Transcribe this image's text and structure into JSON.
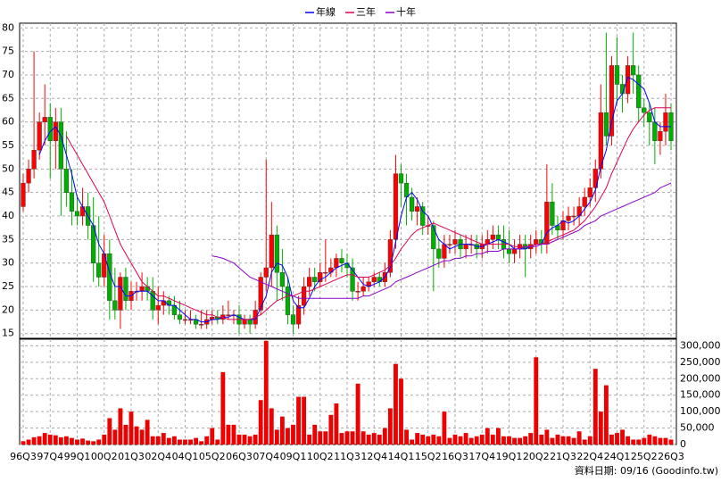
{
  "chart_data": {
    "type": "candlestick",
    "categories": [
      "96Q3",
      null,
      null,
      null,
      null,
      "97Q4",
      null,
      null,
      null,
      null,
      "99Q1",
      null,
      null,
      null,
      null,
      "00Q2",
      null,
      null,
      null,
      null,
      "01Q3",
      null,
      null,
      null,
      null,
      "02Q4",
      null,
      null,
      null,
      null,
      "04Q1",
      null,
      null,
      null,
      null,
      "05Q2",
      null,
      null,
      null,
      null,
      "06Q3",
      null,
      null,
      null,
      null,
      "07Q4",
      null,
      null,
      null,
      null,
      "09Q1",
      null,
      null,
      null,
      null,
      "10Q2",
      null,
      null,
      null,
      null,
      "11Q3",
      null,
      null,
      null,
      null,
      "12Q4",
      null,
      null,
      null,
      null,
      "14Q1",
      null,
      null,
      null,
      null,
      "15Q2",
      null,
      null,
      null,
      null,
      "16Q3",
      null,
      null,
      null,
      null,
      "17Q4",
      null,
      null,
      null,
      null,
      "19Q1",
      null,
      null,
      null,
      null,
      "20Q2",
      null,
      null,
      null,
      null,
      "21Q3",
      null,
      null,
      null,
      null,
      "22Q4",
      null,
      null,
      null,
      null,
      "24Q1",
      null,
      null,
      null,
      null,
      "25Q2",
      null,
      null,
      null,
      null,
      "26Q3"
    ],
    "open": [
      42,
      47,
      50,
      54,
      60,
      61,
      56,
      60,
      50,
      45,
      41,
      40,
      42,
      38,
      30,
      27,
      32,
      22,
      20,
      27,
      22,
      24,
      24,
      25,
      24,
      20,
      21,
      22,
      21,
      19,
      18,
      18,
      18,
      17,
      17,
      18,
      18.5,
      18,
      19,
      19,
      19,
      17,
      18,
      17,
      20,
      27,
      29,
      36,
      28,
      25,
      19,
      17,
      21,
      25,
      27,
      26,
      28,
      28,
      29,
      31,
      30,
      29,
      24,
      24,
      25,
      26,
      27,
      26,
      28,
      35,
      49,
      47,
      44,
      41,
      42,
      38,
      38,
      33,
      31,
      34,
      34,
      35,
      33,
      34,
      34,
      33,
      34,
      35,
      36,
      35,
      33,
      32,
      33,
      34,
      33,
      34,
      35,
      34,
      43,
      38,
      37,
      39,
      40,
      40,
      42,
      44,
      46,
      50,
      62,
      57,
      72,
      68,
      66,
      72,
      70,
      63,
      62,
      60,
      56,
      58,
      62
    ],
    "high": [
      49,
      52,
      75,
      62,
      68,
      64,
      63,
      63,
      58,
      50,
      44,
      46,
      45,
      44,
      40,
      36,
      35,
      29,
      28,
      29,
      26,
      26,
      28,
      27,
      27,
      25,
      24,
      23,
      23,
      22,
      20,
      20,
      19,
      20,
      20,
      20,
      20,
      21,
      22,
      20,
      21,
      19,
      19,
      22,
      28,
      52,
      43,
      38,
      33,
      27,
      21,
      23,
      27,
      29,
      29,
      30,
      35,
      31,
      32,
      33,
      32,
      31,
      26,
      27,
      27,
      28,
      28,
      30,
      37,
      53,
      51,
      49,
      46,
      44,
      43,
      40,
      39,
      35,
      36,
      36,
      37,
      36,
      36,
      36,
      36,
      36,
      37,
      38,
      38,
      38,
      37,
      35,
      36,
      36,
      36,
      37,
      37,
      51,
      47,
      40,
      41,
      42,
      42,
      44,
      46,
      48,
      52,
      68,
      79,
      74,
      78,
      70,
      74,
      79,
      72,
      65,
      64,
      63,
      60,
      66,
      64
    ],
    "low": [
      41,
      45,
      48,
      52,
      55,
      48,
      50,
      40,
      42,
      38,
      38,
      38,
      35,
      26,
      25,
      25,
      18,
      18,
      16,
      20,
      20,
      22,
      22,
      22,
      18,
      17,
      19,
      19,
      18,
      17,
      17,
      17,
      16,
      16,
      16,
      17,
      17,
      17,
      18,
      17,
      15,
      16,
      15,
      16,
      19,
      24,
      25,
      22,
      22,
      17,
      15,
      16,
      19,
      23,
      24,
      25,
      26,
      27,
      27,
      28,
      27,
      22,
      22,
      23,
      24,
      25,
      25,
      25,
      27,
      33,
      42,
      38,
      39,
      38,
      36,
      36,
      24,
      29,
      29,
      32,
      32,
      31,
      31,
      32,
      31,
      31,
      32,
      33,
      33,
      31,
      30,
      30,
      31,
      27,
      31,
      32,
      32,
      32,
      36,
      35,
      35,
      37,
      38,
      38,
      40,
      42,
      43,
      48,
      55,
      55,
      64,
      62,
      64,
      66,
      60,
      59,
      55,
      51,
      53,
      55,
      54
    ],
    "close": [
      47,
      50,
      54,
      60,
      61,
      56,
      60,
      50,
      45,
      41,
      40,
      42,
      38,
      30,
      27,
      32,
      22,
      20,
      27,
      22,
      24,
      24,
      25,
      24,
      20,
      21,
      22,
      21,
      19,
      18,
      18,
      18,
      17,
      17,
      18,
      18.5,
      18,
      19,
      19,
      19,
      17,
      18,
      17,
      20,
      27,
      29,
      36,
      28,
      25,
      19,
      17,
      21,
      25,
      27,
      26,
      28,
      28,
      29,
      31,
      30,
      29,
      24,
      24,
      25,
      26,
      27,
      26,
      28,
      35,
      49,
      47,
      44,
      41,
      42,
      38,
      38,
      33,
      31,
      34,
      34,
      35,
      33,
      34,
      34,
      33,
      34,
      35,
      36,
      35,
      33,
      32,
      33,
      34,
      33,
      34,
      35,
      34,
      43,
      38,
      37,
      39,
      40,
      40,
      42,
      44,
      46,
      50,
      62,
      57,
      72,
      68,
      66,
      72,
      70,
      63,
      62,
      60,
      56,
      58,
      62,
      56
    ],
    "volume": [
      10000,
      15000,
      22000,
      25000,
      35000,
      30000,
      28000,
      22000,
      25000,
      20000,
      15000,
      18000,
      12000,
      10000,
      15000,
      30000,
      80000,
      45000,
      110000,
      60000,
      100000,
      55000,
      45000,
      75000,
      25000,
      25000,
      35000,
      20000,
      25000,
      15000,
      15000,
      15000,
      20000,
      10000,
      25000,
      50000,
      15000,
      220000,
      60000,
      60000,
      30000,
      30000,
      25000,
      30000,
      135000,
      315000,
      110000,
      45000,
      85000,
      50000,
      60000,
      145000,
      145000,
      30000,
      60000,
      40000,
      40000,
      90000,
      125000,
      35000,
      40000,
      40000,
      185000,
      40000,
      30000,
      35000,
      30000,
      50000,
      110000,
      245000,
      200000,
      45000,
      15000,
      35000,
      30000,
      25000,
      30000,
      25000,
      100000,
      20000,
      30000,
      25000,
      35000,
      20000,
      25000,
      30000,
      50000,
      30000,
      50000,
      25000,
      25000,
      20000,
      20000,
      25000,
      35000,
      265000,
      30000,
      45000,
      20000,
      30000,
      25000,
      25000,
      20000,
      40000,
      15000,
      25000,
      230000,
      100000,
      180000,
      30000,
      35000,
      45000,
      25000,
      15000,
      15000,
      20000,
      30000,
      25000,
      20000,
      20000,
      15000
    ],
    "up_color": "#ff0000",
    "down_color": "#00b000",
    "volume_color": "#ee0000",
    "series": [
      {
        "name": "年線",
        "color": "#0000ff",
        "values": [
          null,
          null,
          null,
          53,
          56,
          58,
          59,
          57,
          53,
          49,
          44,
          42,
          40,
          38,
          34,
          32,
          28,
          25,
          25,
          23,
          23,
          24,
          24,
          24,
          23,
          22,
          22,
          21,
          21,
          20,
          19,
          18,
          18,
          17.5,
          17.5,
          18,
          18,
          18.5,
          18.5,
          19,
          18.5,
          18,
          18,
          18,
          20.5,
          23,
          28,
          30,
          29.5,
          27,
          22,
          20.5,
          20.5,
          22.5,
          25,
          26.5,
          27,
          28,
          29,
          29.5,
          30,
          28.5,
          27,
          25.5,
          25,
          25.5,
          26,
          27,
          29,
          34.5,
          40,
          44,
          45,
          43.5,
          41,
          40,
          37.5,
          35,
          34,
          33,
          33.5,
          34,
          34,
          34,
          33.5,
          33.5,
          34,
          34.5,
          35,
          34.5,
          34,
          33,
          33,
          33,
          33.5,
          34,
          34,
          36.5,
          37.5,
          38,
          39,
          38.5,
          39,
          40,
          41.5,
          43,
          45.5,
          50.5,
          54,
          60,
          64.5,
          66,
          69.5,
          69,
          68,
          67,
          64,
          60,
          59,
          59,
          59
        ]
      },
      {
        "name": "三年",
        "color": "#dd0055",
        "values": [
          null,
          null,
          null,
          null,
          null,
          null,
          null,
          null,
          57,
          55,
          53,
          51,
          49,
          47,
          45,
          43,
          40,
          37,
          34,
          32,
          30,
          28,
          26,
          25,
          24,
          23,
          23,
          22.5,
          22,
          21.5,
          21,
          20.5,
          20,
          19.5,
          19,
          19,
          18.5,
          18.5,
          18,
          18,
          18,
          18,
          18,
          18.5,
          19,
          20,
          21,
          22,
          22.5,
          23,
          23,
          23.5,
          24,
          24,
          24.5,
          25,
          25.5,
          26,
          26.5,
          27,
          27.5,
          27.5,
          27,
          27,
          27,
          27.5,
          28,
          28.5,
          29.5,
          31,
          33,
          34.5,
          36,
          37,
          37.5,
          38,
          38.5,
          38,
          37.5,
          37,
          36.5,
          36,
          35.5,
          35,
          34.5,
          34,
          34,
          34,
          34,
          34,
          34,
          33.5,
          33.5,
          33.5,
          33.5,
          34,
          34,
          34.5,
          35,
          35.5,
          36,
          36.5,
          37,
          38,
          39,
          40.5,
          42,
          44,
          46,
          49,
          51.5,
          54,
          56.5,
          58.5,
          60,
          61.5,
          62.5,
          63,
          63,
          63,
          63
        ]
      },
      {
        "name": "十年",
        "color": "#8800cc",
        "values": [
          null,
          null,
          null,
          null,
          null,
          null,
          null,
          null,
          null,
          null,
          null,
          null,
          null,
          null,
          null,
          null,
          null,
          null,
          null,
          null,
          null,
          null,
          null,
          null,
          null,
          null,
          null,
          null,
          null,
          null,
          null,
          null,
          null,
          null,
          null,
          31.5,
          31.3,
          31,
          30.5,
          30,
          29,
          28,
          27,
          26.5,
          26,
          25.5,
          25,
          24.5,
          24,
          23.5,
          23,
          22.5,
          22.5,
          22.5,
          22.5,
          22.5,
          22.5,
          22.5,
          22.5,
          22.5,
          22.5,
          22.5,
          22.5,
          23,
          23,
          23.5,
          24,
          24.5,
          25,
          26,
          26.5,
          27,
          27.5,
          28,
          28.5,
          29,
          29.5,
          30,
          30.5,
          30.5,
          31,
          31,
          31.5,
          31.5,
          32,
          32,
          32.5,
          32.5,
          32.5,
          33,
          33,
          33,
          33,
          33.5,
          33.5,
          33.5,
          34,
          34,
          34.5,
          35,
          35.5,
          36,
          36.5,
          37,
          38,
          38.5,
          39,
          40,
          40.5,
          41,
          41.5,
          42,
          42.5,
          43,
          43.5,
          44,
          44.5,
          45,
          46,
          46.5,
          47
        ]
      }
    ],
    "ylim": [
      14,
      81
    ],
    "yticks": [
      15,
      20,
      25,
      30,
      35,
      40,
      45,
      50,
      55,
      60,
      65,
      70,
      75,
      80
    ],
    "y2lim": [
      0,
      320000
    ],
    "y2ticks": [
      {
        "value": 0,
        "label": "0"
      },
      {
        "value": 50000,
        "label": "50,000"
      },
      {
        "value": 100000,
        "label": "100,000"
      },
      {
        "value": 150000,
        "label": "150,000"
      },
      {
        "value": 200000,
        "label": "200,000"
      },
      {
        "value": 250000,
        "label": "250,000"
      },
      {
        "value": 300000,
        "label": "300,000"
      }
    ],
    "grid": true,
    "legend": "top",
    "footer": "資料日期: 09/16 (Goodinfo.tw)"
  }
}
